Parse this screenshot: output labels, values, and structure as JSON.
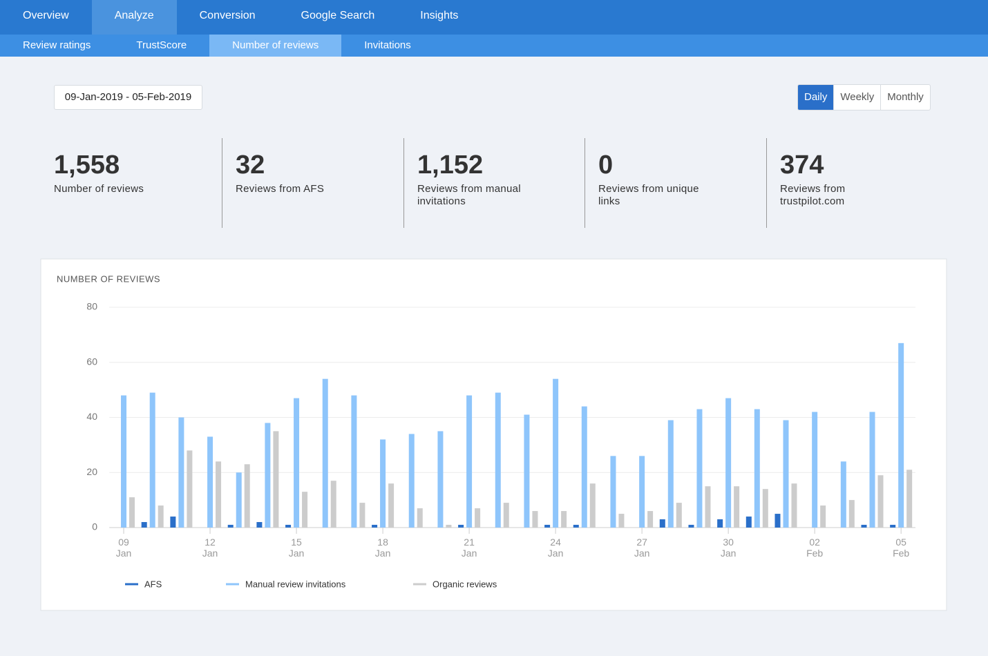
{
  "nav": {
    "tabs": [
      "Overview",
      "Analyze",
      "Conversion",
      "Google Search",
      "Insights"
    ],
    "active": 1
  },
  "subnav": {
    "tabs": [
      "Review ratings",
      "TrustScore",
      "Number of reviews",
      "Invitations"
    ],
    "active": 2
  },
  "date_range": "09-Jan-2019 - 05-Feb-2019",
  "period": {
    "options": [
      "Daily",
      "Weekly",
      "Monthly"
    ],
    "active": 0
  },
  "stats": [
    {
      "value": "1,558",
      "label": "Number of reviews"
    },
    {
      "value": "32",
      "label": "Reviews from AFS"
    },
    {
      "value": "1,152",
      "label": "Reviews from manual invitations"
    },
    {
      "value": "0",
      "label": "Reviews from unique links"
    },
    {
      "value": "374",
      "label": "Reviews from trustpilot.com"
    }
  ],
  "chart_data": {
    "type": "bar",
    "title": "NUMBER OF REVIEWS",
    "categories": [
      "09 Jan",
      null,
      null,
      "12 Jan",
      null,
      null,
      "15 Jan",
      null,
      null,
      "18 Jan",
      null,
      null,
      "21 Jan",
      null,
      null,
      "24 Jan",
      null,
      null,
      "27 Jan",
      null,
      null,
      "30 Jan",
      null,
      null,
      "02 Feb",
      null,
      null,
      "05 Feb"
    ],
    "series": [
      {
        "name": "AFS",
        "color": "#2a6fc9",
        "values": [
          0,
          2,
          4,
          0,
          1,
          2,
          1,
          0,
          0,
          1,
          0,
          0,
          1,
          0,
          0,
          1,
          1,
          0,
          0,
          3,
          1,
          3,
          4,
          5,
          0,
          0,
          1,
          1
        ]
      },
      {
        "name": "Manual review invitations",
        "color": "#8ec5fb",
        "values": [
          48,
          49,
          40,
          33,
          20,
          38,
          47,
          54,
          48,
          32,
          34,
          35,
          48,
          49,
          41,
          54,
          44,
          26,
          26,
          39,
          43,
          47,
          43,
          39,
          42,
          24,
          42,
          67
        ]
      },
      {
        "name": "Organic reviews",
        "color": "#cccccc",
        "values": [
          11,
          8,
          28,
          24,
          23,
          35,
          13,
          17,
          9,
          16,
          7,
          1,
          7,
          9,
          6,
          6,
          16,
          5,
          6,
          9,
          15,
          15,
          14,
          16,
          8,
          10,
          19,
          21
        ]
      }
    ],
    "ylim": [
      0,
      80
    ],
    "yticks": [
      0,
      20,
      40,
      60,
      80
    ],
    "grid": true,
    "legend": "bottom"
  }
}
